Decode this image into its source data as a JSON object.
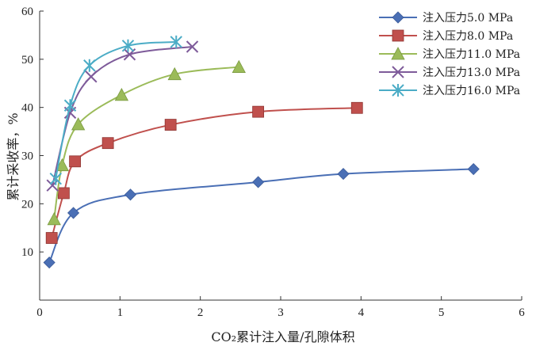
{
  "chart_data": {
    "type": "line",
    "xlabel": "CO₂累计注入量/孔隙体积",
    "ylabel": "累计采收率，%",
    "xlim": [
      0,
      6
    ],
    "ylim": [
      0,
      60
    ],
    "xticks": [
      0,
      1,
      2,
      3,
      4,
      5,
      6
    ],
    "yticks": [
      10,
      20,
      30,
      40,
      50,
      60
    ],
    "grid": false,
    "legend_position": "top-right",
    "series": [
      {
        "name": "注入压力5.0 MPa",
        "color": "#4a6fb5",
        "marker": "diamond",
        "x": [
          0.12,
          0.42,
          1.13,
          2.72,
          3.78,
          5.4
        ],
        "y": [
          7.8,
          18.1,
          21.9,
          24.5,
          26.2,
          27.2
        ]
      },
      {
        "name": "注入压力8.0 MPa",
        "color": "#c0504d",
        "marker": "square",
        "x": [
          0.15,
          0.3,
          0.44,
          0.85,
          1.63,
          2.72,
          3.95
        ],
        "y": [
          12.9,
          22.2,
          28.8,
          32.6,
          36.4,
          39.1,
          39.9
        ]
      },
      {
        "name": "注入压力11.0 MPa",
        "color": "#9bbb59",
        "marker": "triangle",
        "x": [
          0.18,
          0.28,
          0.48,
          1.02,
          1.68,
          2.48
        ],
        "y": [
          16.8,
          28.0,
          36.5,
          42.6,
          46.9,
          48.4
        ]
      },
      {
        "name": "注入压力13.0 MPa",
        "color": "#7e5b9a",
        "marker": "x",
        "x": [
          0.16,
          0.38,
          0.64,
          1.12,
          1.9
        ],
        "y": [
          23.8,
          38.9,
          46.4,
          51.0,
          52.6
        ]
      },
      {
        "name": "注入压力16.0 MPa",
        "color": "#4bacc6",
        "marker": "star",
        "x": [
          0.2,
          0.38,
          0.62,
          1.1,
          1.7
        ],
        "y": [
          25.2,
          40.4,
          48.7,
          52.8,
          53.6
        ]
      }
    ]
  }
}
